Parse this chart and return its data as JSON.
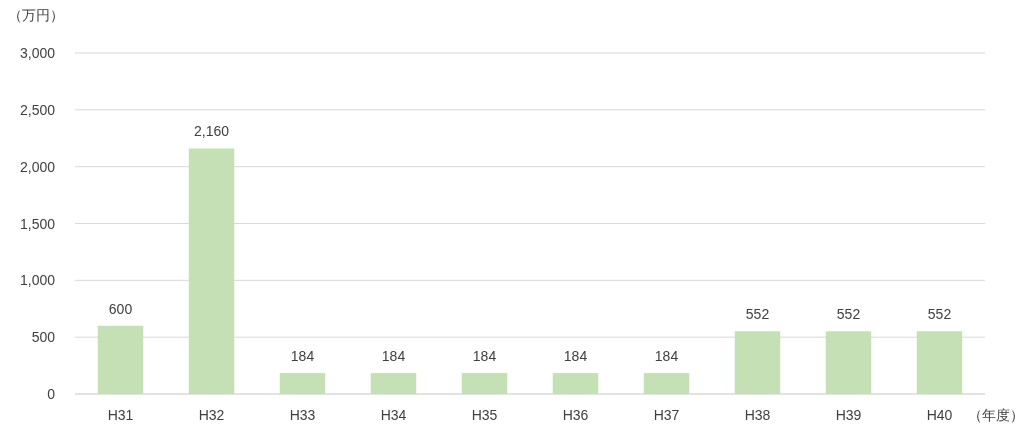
{
  "chart_data": {
    "type": "bar",
    "ylabel": "（万円）",
    "xlabel": "（年度）",
    "categories": [
      "H31",
      "H32",
      "H33",
      "H34",
      "H35",
      "H36",
      "H37",
      "H38",
      "H39",
      "H40"
    ],
    "values": [
      600,
      2160,
      184,
      184,
      184,
      184,
      184,
      552,
      552,
      552
    ],
    "value_labels": [
      "600",
      "2,160",
      "184",
      "184",
      "184",
      "184",
      "184",
      "552",
      "552",
      "552"
    ],
    "color": "#c5e0b4",
    "ylim": [
      0,
      3000
    ],
    "yticks": [
      0,
      500,
      {
        "value": 1000,
        "label": "1,000"
      },
      {
        "value": 1500,
        "label": "1,500"
      },
      {
        "value": 2000,
        "label": "2,000"
      },
      {
        "value": 2500,
        "label": "2,500"
      },
      {
        "value": 3000,
        "label": "3,000"
      }
    ],
    "grid": "y"
  }
}
